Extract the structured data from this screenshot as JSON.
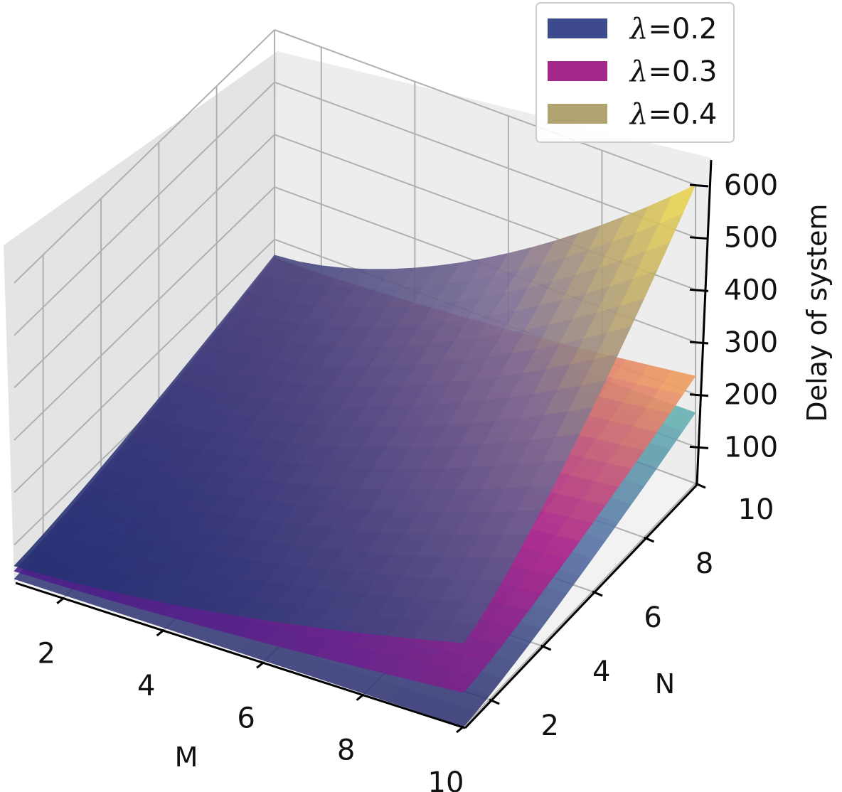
{
  "chart_data": {
    "type": "surface3d",
    "xlabel": "M",
    "ylabel": "N",
    "zlabel": "Delay of system",
    "x_ticks": [
      "2",
      "4",
      "6",
      "8",
      "10"
    ],
    "y_ticks": [
      "2",
      "4",
      "6",
      "8",
      "10"
    ],
    "z_ticks": [
      "100",
      "200",
      "300",
      "400",
      "500",
      "600"
    ],
    "xlim": [
      1,
      10
    ],
    "ylim": [
      1,
      10
    ],
    "zlim": [
      30,
      600
    ],
    "legend_position": "top-right",
    "grid": true,
    "series": [
      {
        "name": "λ=0.2",
        "legend_symbol": "λ",
        "legend_value": "=0.2",
        "legend_color": "#3d4a8c",
        "colors": [
          "#2a2d6e",
          "#4f6aa0",
          "#5fb3b0"
        ],
        "corners": {
          "M1N1": 35,
          "M10N1": 30,
          "M1N10": 160,
          "M10N10": 165
        }
      },
      {
        "name": "λ=0.3",
        "legend_symbol": "λ",
        "legend_value": "=0.3",
        "legend_color": "#a2288c",
        "colors": [
          "#4a1f8a",
          "#b5268f",
          "#f5a95c"
        ],
        "corners": {
          "M1N1": 50,
          "M10N1": 95,
          "M1N10": 165,
          "M10N10": 235
        }
      },
      {
        "name": "λ=0.4",
        "legend_symbol": "λ",
        "legend_value": "=0.4",
        "legend_color": "#b0a370",
        "colors": [
          "#253273",
          "#7d6d95",
          "#f7e04a"
        ],
        "corners": {
          "M1N1": 60,
          "M10N1": 190,
          "M1N10": 170,
          "M10N10": 600
        }
      }
    ]
  }
}
